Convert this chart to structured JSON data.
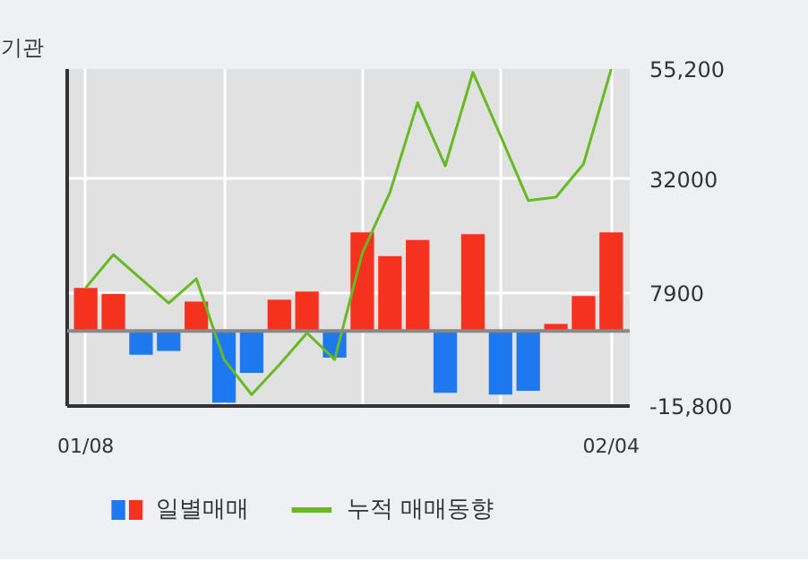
{
  "chart_data": {
    "type": "bar",
    "title": "기관",
    "categories": [
      "01/08",
      null,
      null,
      null,
      null,
      null,
      null,
      null,
      null,
      null,
      null,
      null,
      null,
      null,
      null,
      null,
      null,
      null,
      null,
      "02/04"
    ],
    "series": [
      {
        "name": "일별매매",
        "colors": [
          "#f5321e",
          "#f5321e",
          "#1e78f0",
          "#1e78f0",
          "#f5321e",
          "#1e78f0",
          "#1e78f0",
          "#f5321e",
          "#f5321e",
          "#1e78f0",
          "#f5321e",
          "#f5321e",
          "#f5321e",
          "#1e78f0",
          "#f5321e",
          "#1e78f0",
          "#1e78f0",
          "#f5321e",
          "#f5321e",
          "#f5321e"
        ],
        "values": [
          9100,
          7800,
          -5000,
          -4200,
          6200,
          -15100,
          -8800,
          6600,
          8300,
          -5600,
          20800,
          15800,
          19200,
          -13000,
          20400,
          -13400,
          -12600,
          1500,
          7400,
          20800
        ]
      },
      {
        "type": "line",
        "name": "누적 매매동향",
        "color": "#66bb22",
        "values": [
          9100,
          16100,
          11000,
          5900,
          11000,
          -6000,
          -13400,
          -7100,
          -400,
          -6000,
          16400,
          29200,
          48100,
          34800,
          54500,
          41100,
          27500,
          28200,
          35200,
          55200
        ]
      }
    ],
    "ylim": [
      -15800,
      55200
    ],
    "yticks": [
      {
        "value": 55200,
        "label": "55,200"
      },
      32000,
      7900,
      {
        "value": -15800,
        "label": "-15,800"
      }
    ],
    "ref_lines": [
      {
        "axis": "y",
        "value": 0,
        "color": "#888888"
      }
    ],
    "grid": true,
    "legend": "bottom"
  }
}
